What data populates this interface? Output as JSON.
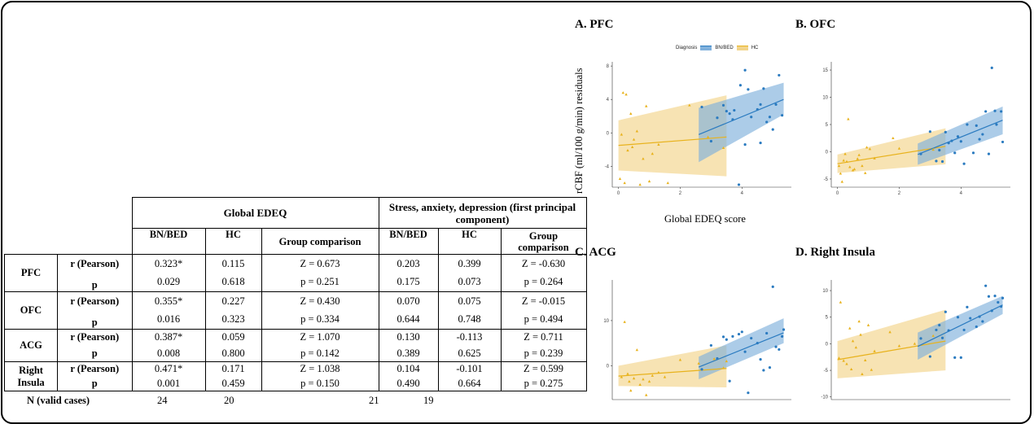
{
  "table": {
    "group_headers": [
      "Global EDEQ",
      "Stress, anxiety, depression (first principal component)"
    ],
    "sub_headers": [
      "BN/BED",
      "HC",
      "Group comparison",
      "BN/BED",
      "HC",
      "Group comparison"
    ],
    "rows": [
      {
        "region": "PFC",
        "stats": [
          {
            "label": "r (Pearson)",
            "values": [
              "0.323*",
              "0.115",
              "Z = 0.673",
              "0.203",
              "0.399",
              "Z = -0.630"
            ]
          },
          {
            "label": "p",
            "values": [
              "0.029",
              "0.618",
              "p = 0.251",
              "0.175",
              "0.073",
              "p = 0.264"
            ]
          }
        ]
      },
      {
        "region": "OFC",
        "stats": [
          {
            "label": "r (Pearson)",
            "values": [
              "0.355*",
              "0.227",
              "Z = 0.430",
              "0.070",
              "0.075",
              "Z = -0.015"
            ]
          },
          {
            "label": "p",
            "values": [
              "0.016",
              "0.323",
              "p = 0.334",
              "0.644",
              "0.748",
              "p = 0.494"
            ]
          }
        ]
      },
      {
        "region": "ACG",
        "stats": [
          {
            "label": "r (Pearson)",
            "values": [
              "0.387*",
              "0.059",
              "Z = 1.070",
              "0.130",
              "-0.113",
              "Z = 0.711"
            ]
          },
          {
            "label": "p",
            "values": [
              "0.008",
              "0.800",
              "p = 0.142",
              "0.389",
              "0.625",
              "p = 0.239"
            ]
          }
        ]
      },
      {
        "region": "Right Insula",
        "stats": [
          {
            "label": "r (Pearson)",
            "values": [
              "0.471*",
              "0.171",
              "Z = 1.038",
              "0.104",
              "-0.101",
              "Z = 0.599"
            ]
          },
          {
            "label": "p",
            "values": [
              "0.001",
              "0.459",
              "p = 0.150",
              "0.490",
              "0.664",
              "p = 0.275"
            ]
          }
        ]
      }
    ],
    "n_label": "N (valid cases)",
    "n_values": [
      "24",
      "20",
      "21",
      "19"
    ]
  },
  "figure": {
    "ylabel": "rCBF (ml/100 g/min) residuals",
    "xlabel": "Global EDEQ score",
    "legend_title": "Diagnosis",
    "legend_items": [
      "BN/BED",
      "HC"
    ]
  },
  "colors": {
    "bn_bed": "#2b7bc0",
    "hc": "#e8b21c",
    "bn_band": "#7fb0dc",
    "hc_band": "#f2d48a"
  },
  "chart_data": [
    {
      "type": "scatter",
      "title": "A. PFC",
      "xlabel": "Global EDEQ score",
      "ylabel": "rCBF (ml/100 g/min) residuals",
      "xlim": [
        -0.2,
        5.6
      ],
      "ylim": [
        -6.5,
        8.5
      ],
      "xticks": [
        0,
        2,
        4
      ],
      "yticks": [
        -4,
        0,
        4,
        8
      ],
      "series": [
        {
          "name": "BN/BED",
          "points": [
            [
              2.7,
              3.1
            ],
            [
              3.0,
              -1.0
            ],
            [
              3.2,
              1.8
            ],
            [
              3.4,
              3.3
            ],
            [
              3.5,
              2.6
            ],
            [
              3.6,
              2.3
            ],
            [
              3.7,
              1.6
            ],
            [
              3.75,
              2.7
            ],
            [
              3.9,
              -6.2
            ],
            [
              3.95,
              5.7
            ],
            [
              4.1,
              -1.4
            ],
            [
              4.1,
              7.5
            ],
            [
              4.2,
              5.2
            ],
            [
              4.3,
              1.9
            ],
            [
              4.5,
              2.8
            ],
            [
              4.6,
              3.4
            ],
            [
              4.6,
              -1.2
            ],
            [
              4.7,
              5.3
            ],
            [
              4.8,
              1.3
            ],
            [
              4.9,
              1.9
            ],
            [
              5.0,
              0.4
            ],
            [
              5.1,
              3.4
            ],
            [
              5.2,
              6.9
            ],
            [
              5.3,
              2.1
            ]
          ],
          "fit": [
            [
              2.6,
              -0.2
            ],
            [
              5.35,
              4.0
            ]
          ],
          "band_low": [
            -3.5,
            2.2
          ],
          "band_high": [
            3.0,
            6.0
          ]
        },
        {
          "name": "HC",
          "points": [
            [
              0.05,
              -5.5
            ],
            [
              0.1,
              -0.2
            ],
            [
              0.15,
              4.8
            ],
            [
              0.2,
              -6.0
            ],
            [
              0.25,
              4.6
            ],
            [
              0.3,
              -2.1
            ],
            [
              0.4,
              2.3
            ],
            [
              0.45,
              -1.7
            ],
            [
              0.5,
              -0.8
            ],
            [
              0.6,
              0.2
            ],
            [
              0.7,
              -6.2
            ],
            [
              0.8,
              -3.1
            ],
            [
              0.9,
              3.2
            ],
            [
              1.0,
              -5.8
            ],
            [
              1.1,
              -2.5
            ],
            [
              1.3,
              -1.4
            ],
            [
              1.6,
              -6.0
            ],
            [
              2.3,
              3.3
            ],
            [
              2.9,
              -0.5
            ],
            [
              3.4,
              -1.8
            ]
          ],
          "fit": [
            [
              0.0,
              -1.5
            ],
            [
              3.5,
              -0.5
            ]
          ],
          "band_low": [
            -4.5,
            -5.2
          ],
          "band_high": [
            1.5,
            4.5
          ]
        }
      ]
    },
    {
      "type": "scatter",
      "title": "B. OFC",
      "xlim": [
        -0.2,
        5.6
      ],
      "ylim": [
        -6.5,
        16.5
      ],
      "xticks": [
        0,
        2,
        4
      ],
      "yticks": [
        -5,
        0,
        5,
        10,
        15
      ],
      "series": [
        {
          "name": "BN/BED",
          "points": [
            [
              2.7,
              -0.4
            ],
            [
              3.0,
              3.7
            ],
            [
              3.2,
              -1.7
            ],
            [
              3.3,
              0.3
            ],
            [
              3.4,
              -1.8
            ],
            [
              3.5,
              3.6
            ],
            [
              3.6,
              1.6
            ],
            [
              3.7,
              2.0
            ],
            [
              3.8,
              -0.2
            ],
            [
              3.9,
              2.8
            ],
            [
              4.0,
              1.9
            ],
            [
              4.1,
              -2.2
            ],
            [
              4.2,
              5.0
            ],
            [
              4.4,
              -0.2
            ],
            [
              4.5,
              4.8
            ],
            [
              4.6,
              2.3
            ],
            [
              4.7,
              3.2
            ],
            [
              4.8,
              7.4
            ],
            [
              4.9,
              -0.4
            ],
            [
              5.0,
              15.4
            ],
            [
              5.1,
              7.5
            ],
            [
              5.15,
              5.0
            ],
            [
              5.3,
              7.4
            ],
            [
              5.35,
              1.8
            ]
          ],
          "fit": [
            [
              2.6,
              -0.5
            ],
            [
              5.35,
              5.8
            ]
          ],
          "band_low": [
            -2.4,
            3.2
          ],
          "band_high": [
            1.5,
            8.3
          ]
        },
        {
          "name": "HC",
          "points": [
            [
              0.05,
              -2.6
            ],
            [
              0.1,
              -4.0
            ],
            [
              0.15,
              -5.5
            ],
            [
              0.2,
              -1.6
            ],
            [
              0.25,
              -0.4
            ],
            [
              0.3,
              -1.8
            ],
            [
              0.35,
              6.0
            ],
            [
              0.4,
              -2.8
            ],
            [
              0.5,
              -3.4
            ],
            [
              0.55,
              -3.2
            ],
            [
              0.65,
              -1.3
            ],
            [
              0.7,
              -0.6
            ],
            [
              0.8,
              -2.6
            ],
            [
              0.9,
              -3.9
            ],
            [
              0.95,
              0.8
            ],
            [
              1.05,
              0.5
            ],
            [
              1.2,
              -1.2
            ],
            [
              1.8,
              2.5
            ],
            [
              2.0,
              0.6
            ],
            [
              3.1,
              0.4
            ]
          ],
          "fit": [
            [
              0.0,
              -2.2
            ],
            [
              3.5,
              1.0
            ]
          ],
          "band_low": [
            -3.9,
            -2.3
          ],
          "band_high": [
            -0.5,
            4.3
          ]
        }
      ]
    },
    {
      "type": "scatter",
      "title": "C. ACG",
      "xlim": [
        -0.2,
        5.6
      ],
      "ylim": [
        -7.5,
        19.0
      ],
      "xticks": [],
      "yticks": [
        0,
        10
      ],
      "series": [
        {
          "name": "BN/BED",
          "points": [
            [
              2.7,
              -0.8
            ],
            [
              3.0,
              4.5
            ],
            [
              3.2,
              1.6
            ],
            [
              3.4,
              6.4
            ],
            [
              3.5,
              5.8
            ],
            [
              3.6,
              -3.4
            ],
            [
              3.7,
              6.5
            ],
            [
              3.9,
              7.0
            ],
            [
              4.0,
              7.5
            ],
            [
              4.1,
              3.1
            ],
            [
              4.2,
              -6.0
            ],
            [
              4.3,
              6.1
            ],
            [
              4.5,
              5.0
            ],
            [
              4.6,
              1.4
            ],
            [
              4.7,
              -1.0
            ],
            [
              4.8,
              7.2
            ],
            [
              4.9,
              -0.4
            ],
            [
              5.0,
              17.5
            ],
            [
              5.1,
              4.2
            ],
            [
              5.2,
              3.6
            ],
            [
              5.3,
              6.5
            ],
            [
              5.35,
              8.0
            ]
          ],
          "fit": [
            [
              2.6,
              -0.3
            ],
            [
              5.35,
              7.3
            ]
          ],
          "band_low": [
            -3.0,
            5.0
          ],
          "band_high": [
            2.0,
            10.5
          ]
        },
        {
          "name": "HC",
          "points": [
            [
              0.1,
              -2.5
            ],
            [
              0.2,
              9.7
            ],
            [
              0.3,
              -1.8
            ],
            [
              0.35,
              -3.5
            ],
            [
              0.4,
              -5.5
            ],
            [
              0.5,
              -2.8
            ],
            [
              0.6,
              3.5
            ],
            [
              0.7,
              -4.2
            ],
            [
              0.8,
              -3.0
            ],
            [
              0.9,
              -6.5
            ],
            [
              1.0,
              -3.5
            ],
            [
              1.1,
              -2.2
            ],
            [
              1.3,
              -1.5
            ],
            [
              1.5,
              -2.5
            ],
            [
              2.0,
              1.3
            ],
            [
              2.6,
              0.5
            ],
            [
              3.1,
              1.5
            ],
            [
              3.4,
              -0.5
            ],
            [
              3.5,
              1.0
            ]
          ],
          "fit": [
            [
              0.0,
              -2.3
            ],
            [
              3.5,
              -0.6
            ]
          ],
          "band_low": [
            -4.5,
            -4.8
          ],
          "band_high": [
            0.0,
            4.5
          ]
        }
      ]
    },
    {
      "type": "scatter",
      "title": "D. Right Insula",
      "xlim": [
        -0.2,
        5.6
      ],
      "ylim": [
        -10.5,
        12.0
      ],
      "xticks": [],
      "yticks": [
        -10,
        -5,
        0,
        5,
        10
      ],
      "series": [
        {
          "name": "BN/BED",
          "points": [
            [
              2.7,
              1.0
            ],
            [
              3.0,
              -2.4
            ],
            [
              3.2,
              2.6
            ],
            [
              3.3,
              3.5
            ],
            [
              3.4,
              1.1
            ],
            [
              3.5,
              6.0
            ],
            [
              3.6,
              2.5
            ],
            [
              3.8,
              -2.6
            ],
            [
              3.9,
              5.0
            ],
            [
              4.0,
              -2.6
            ],
            [
              4.1,
              2.6
            ],
            [
              4.2,
              6.9
            ],
            [
              4.3,
              4.8
            ],
            [
              4.5,
              3.2
            ],
            [
              4.6,
              5.1
            ],
            [
              4.7,
              4.2
            ],
            [
              4.8,
              10.9
            ],
            [
              4.9,
              8.9
            ],
            [
              5.0,
              6.2
            ],
            [
              5.1,
              9.0
            ],
            [
              5.2,
              7.8
            ],
            [
              5.3,
              7.0
            ],
            [
              5.35,
              8.6
            ]
          ],
          "fit": [
            [
              2.6,
              -0.5
            ],
            [
              5.35,
              7.3
            ]
          ],
          "band_low": [
            -3.0,
            5.6
          ],
          "band_high": [
            2.1,
            9.0
          ]
        },
        {
          "name": "HC",
          "points": [
            [
              0.05,
              -2.7
            ],
            [
              0.1,
              7.8
            ],
            [
              0.2,
              -3.2
            ],
            [
              0.3,
              -3.8
            ],
            [
              0.4,
              2.9
            ],
            [
              0.45,
              -4.8
            ],
            [
              0.5,
              0.5
            ],
            [
              0.6,
              -0.7
            ],
            [
              0.7,
              4.2
            ],
            [
              0.75,
              1.7
            ],
            [
              0.8,
              -5.7
            ],
            [
              0.9,
              -3.1
            ],
            [
              1.0,
              3.5
            ],
            [
              1.1,
              -4.9
            ],
            [
              1.2,
              -1.4
            ],
            [
              1.7,
              2.2
            ],
            [
              2.0,
              -0.4
            ],
            [
              2.5,
              0.0
            ],
            [
              3.1,
              1.5
            ]
          ],
          "fit": [
            [
              0.0,
              -3.0
            ],
            [
              3.5,
              0.5
            ]
          ],
          "band_low": [
            -6.5,
            -5.0
          ],
          "band_high": [
            0.5,
            6.4
          ]
        }
      ]
    }
  ]
}
